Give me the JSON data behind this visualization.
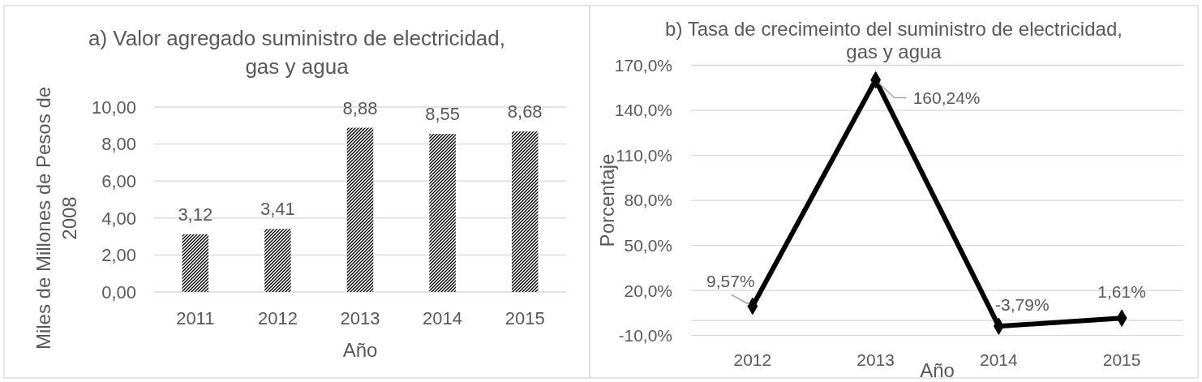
{
  "chart_data": [
    {
      "type": "bar",
      "title": "a) Valor agregado suministro de electricidad, gas y agua",
      "xlabel": "Año",
      "ylabel": "Miles de Millones de Pesos de 2008",
      "categories": [
        "2011",
        "2012",
        "2013",
        "2014",
        "2015"
      ],
      "values": [
        3.12,
        3.41,
        8.88,
        8.55,
        8.68
      ],
      "value_labels": [
        "3,12",
        "3,41",
        "8,88",
        "8,55",
        "8,68"
      ],
      "color": "#000000",
      "ylim": [
        0,
        10
      ],
      "yticks": [
        {
          "value": 0,
          "label": "0,00"
        },
        {
          "value": 2,
          "label": "2,00"
        },
        {
          "value": 4,
          "label": "4,00"
        },
        {
          "value": 6,
          "label": "6,00"
        },
        {
          "value": 8,
          "label": "8,00"
        },
        {
          "value": 10,
          "label": "10,00"
        }
      ],
      "grid": "y"
    },
    {
      "type": "line",
      "title": "b) Tasa de crecimeinto del suministro de electricidad, gas y agua",
      "xlabel": "Año",
      "ylabel": "Porcentaje",
      "categories": [
        "2012",
        "2013",
        "2014",
        "2015"
      ],
      "values": [
        9.57,
        160.24,
        -3.79,
        1.61
      ],
      "value_labels": [
        "9,57%",
        "160,24%",
        "-3,79%",
        "1,61%"
      ],
      "color": "#000000",
      "marker": "diamond",
      "ylim": [
        -10,
        170
      ],
      "yticks": [
        {
          "value": -10,
          "label": "-10,0%"
        },
        {
          "value": 20,
          "label": "20,0%"
        },
        {
          "value": 50,
          "label": "50,0%"
        },
        {
          "value": 80,
          "label": "80,0%"
        },
        {
          "value": 110,
          "label": "110,0%"
        },
        {
          "value": 140,
          "label": "140,0%"
        },
        {
          "value": 170,
          "label": "170,0%"
        }
      ],
      "grid": "y",
      "ref_lines": [
        {
          "axis": "y",
          "value": 0,
          "color": "#d9d9d9"
        }
      ]
    }
  ]
}
